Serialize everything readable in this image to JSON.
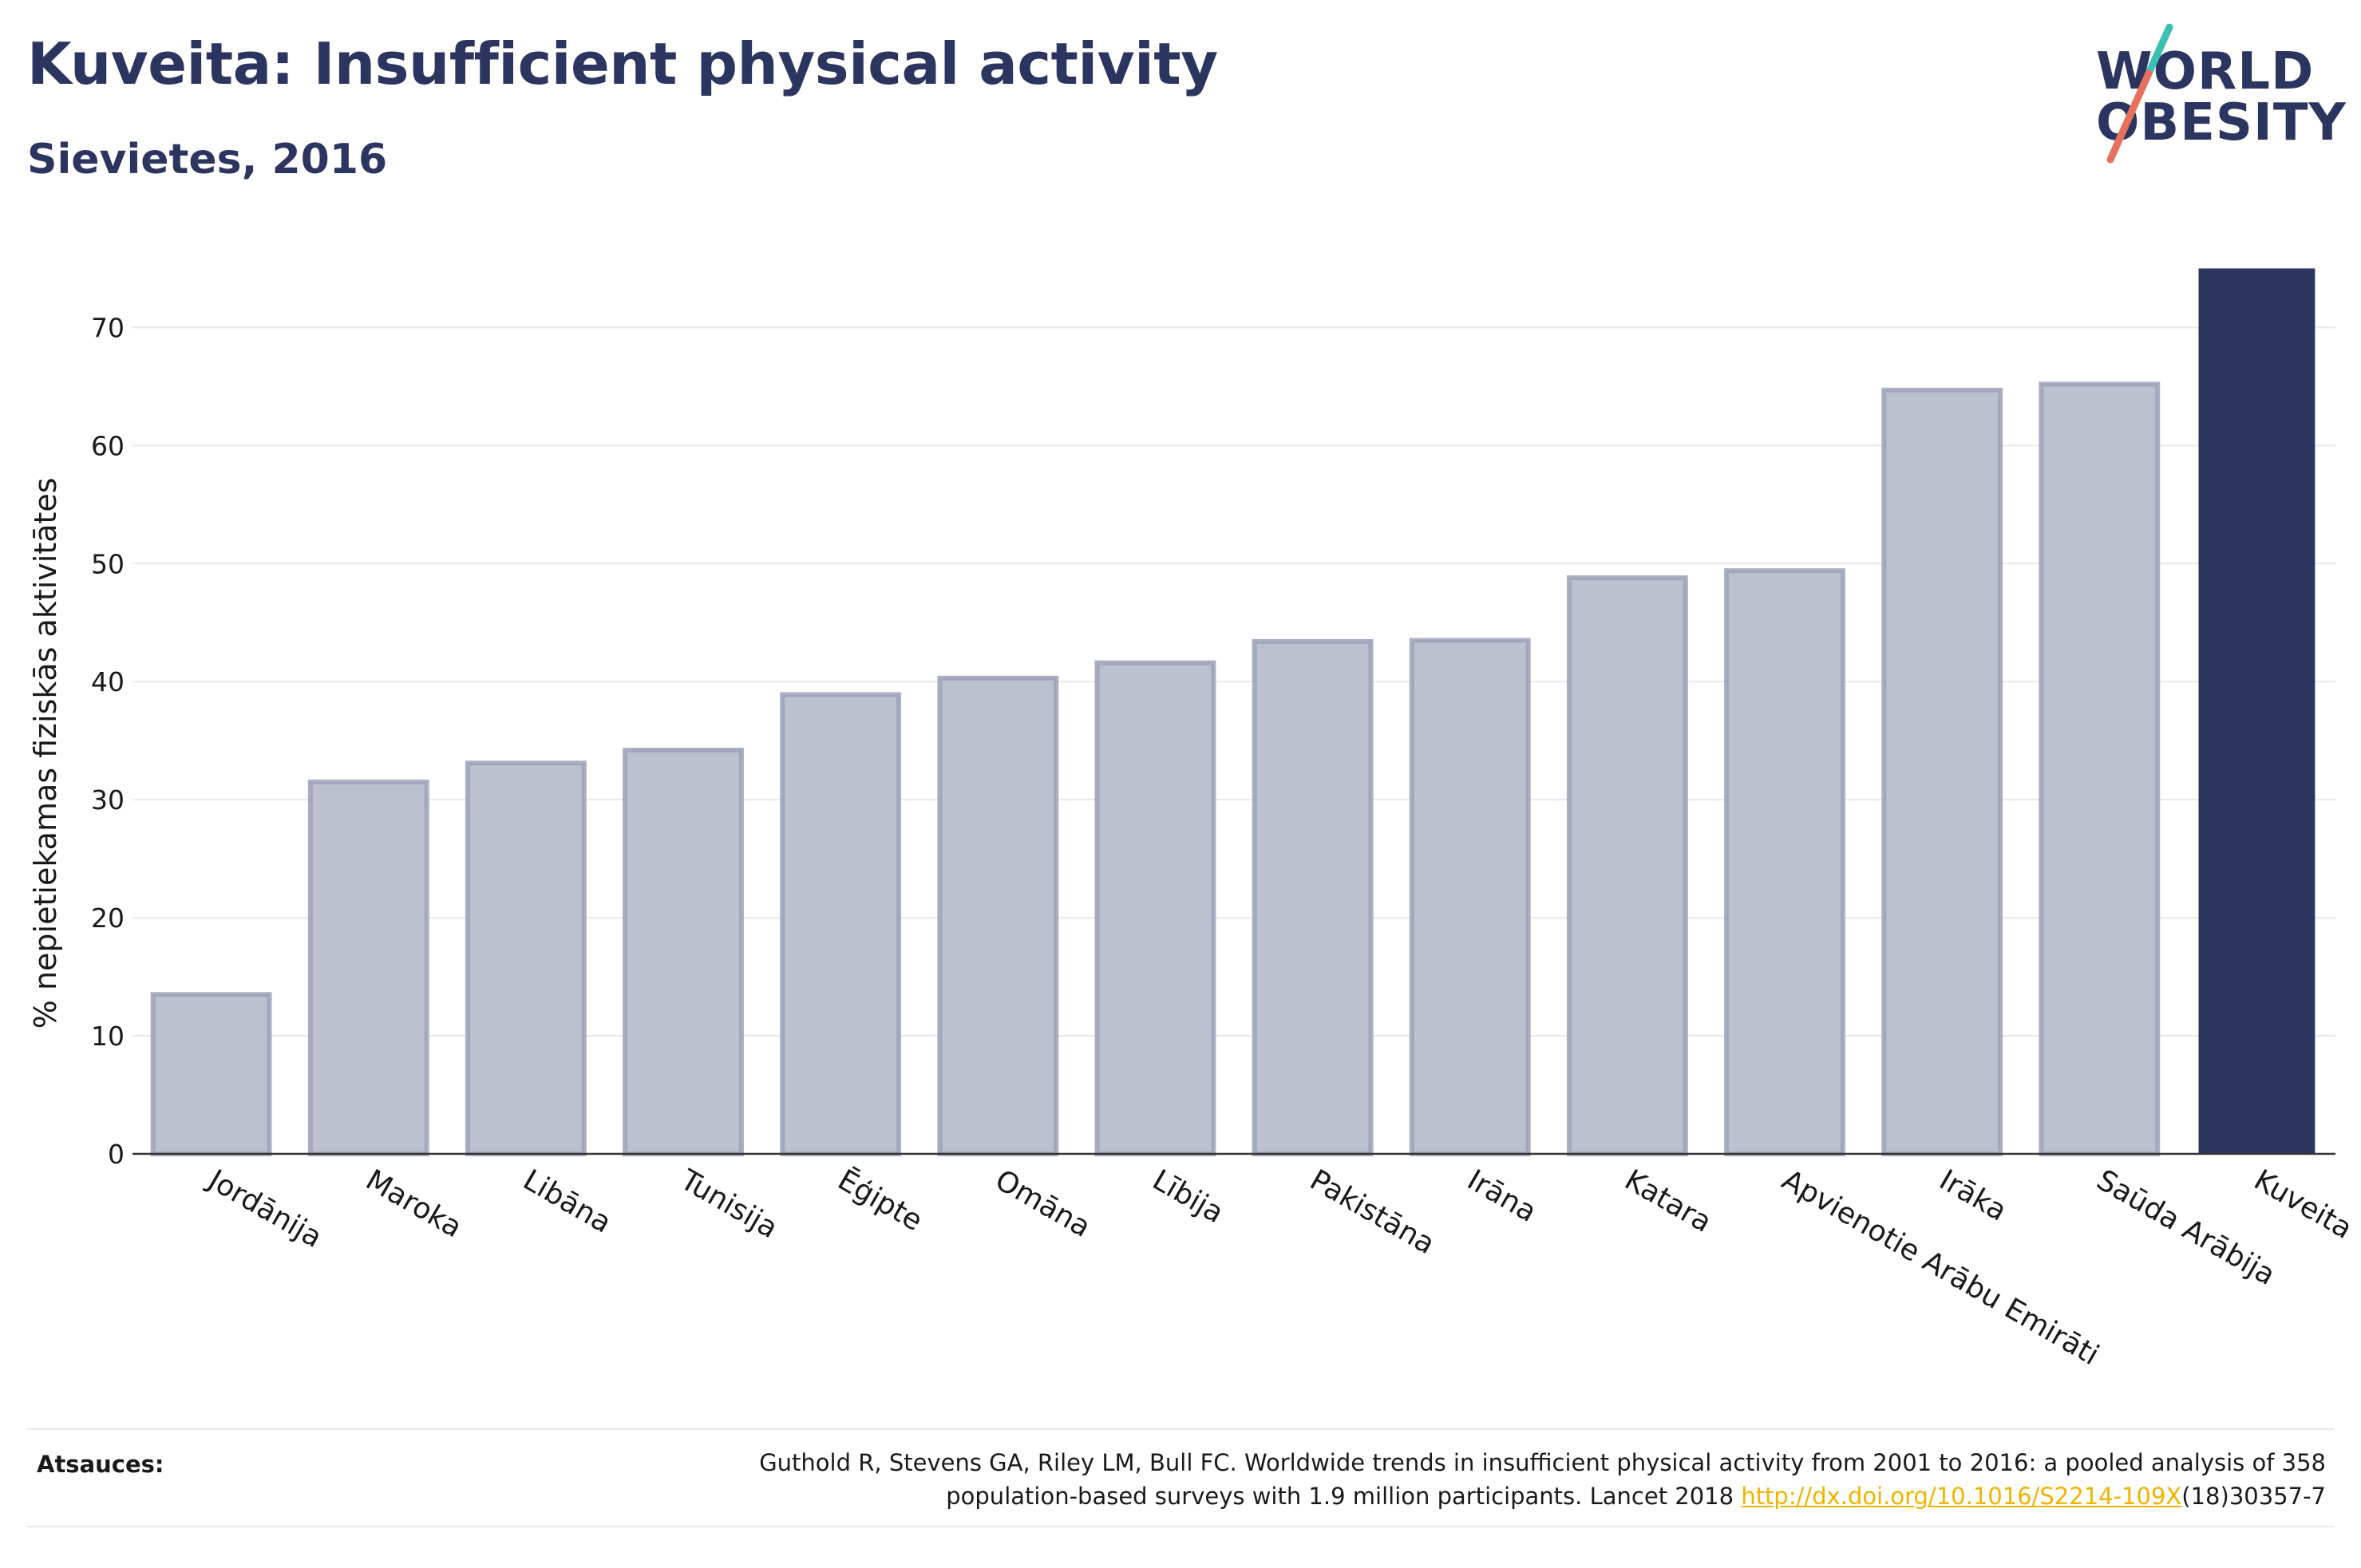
{
  "title": "Kuveita: Insufficient physical activity",
  "subtitle": "Sievietes, 2016",
  "logo": {
    "line1": "WORLD",
    "line2": "OBESITY",
    "slash_colors": [
      "#3cbfb4",
      "#e8705e"
    ]
  },
  "colors": {
    "bar_default": "#bcc0cf",
    "bar_border": "#9ba1b8",
    "bar_highlight": "#2b3560",
    "grid": "#e8e8ec",
    "text": "#1a1a1a",
    "brand": "#2b3560"
  },
  "chart_data": {
    "type": "bar",
    "title": "Kuveita: Insufficient physical activity",
    "subtitle": "Sievietes, 2016",
    "xlabel": "",
    "ylabel": "% nepietiekamas fiziskās aktivitātes",
    "ylim": [
      0,
      76
    ],
    "yticks": [
      0,
      10,
      20,
      30,
      40,
      50,
      60,
      70
    ],
    "grid": true,
    "categories": [
      "Jordānija",
      "Maroka",
      "Libāna",
      "Tunisija",
      "Ēģipte",
      "Omāna",
      "Lībija",
      "Pakistāna",
      "Irāna",
      "Katara",
      "Apvienotie Arābu Emirāti",
      "Irāka",
      "Saūda Arābija",
      "Kuveita"
    ],
    "values": [
      13.5,
      31.5,
      33.1,
      34.2,
      38.9,
      40.3,
      41.6,
      43.4,
      43.5,
      48.8,
      49.4,
      64.7,
      65.2,
      75.0
    ],
    "highlight": "Kuveita"
  },
  "footer": {
    "label": "Atsauces:",
    "citation_line1": "Guthold R, Stevens GA, Riley LM, Bull FC. Worldwide trends in insufficient physical activity from 2001 to 2016: a pooled analysis of 358",
    "citation_line2_pre": "population-based surveys with 1.9 million participants. Lancet 2018 ",
    "citation_link": "http://dx.doi.org/10.1016/S2214-109X",
    "citation_line2_post": "(18)30357-7"
  }
}
